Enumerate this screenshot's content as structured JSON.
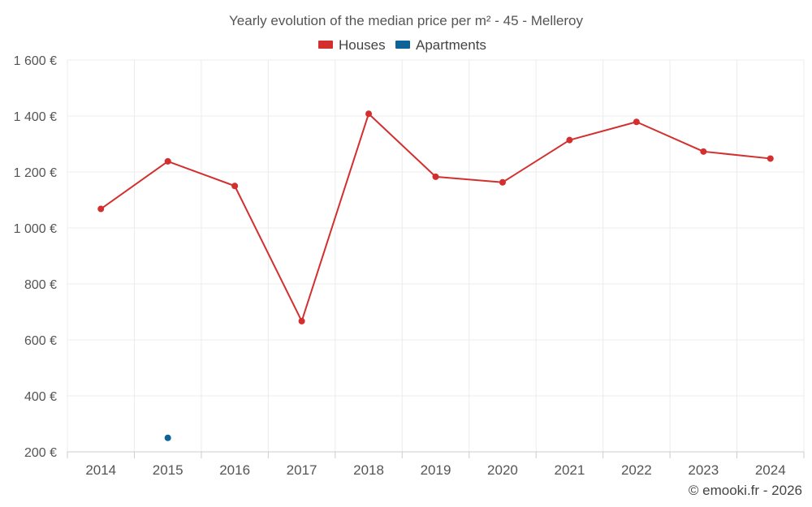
{
  "chart_data": {
    "type": "line",
    "title": "Yearly evolution of the median price per m² - 45 - Melleroy",
    "xlabel": "",
    "ylabel": "",
    "categories": [
      "2014",
      "2015",
      "2016",
      "2017",
      "2018",
      "2019",
      "2020",
      "2021",
      "2022",
      "2023",
      "2024"
    ],
    "ylim": [
      200,
      1600
    ],
    "yticks": [
      200,
      400,
      600,
      800,
      1000,
      1200,
      1400,
      1600
    ],
    "ytick_labels": [
      "200 €",
      "400 €",
      "600 €",
      "800 €",
      "1 000 €",
      "1 200 €",
      "1 400 €",
      "1 600 €"
    ],
    "grid": true,
    "legend_position": "top-center",
    "series": [
      {
        "name": "Houses",
        "color": "#d32f2f",
        "values": [
          1068,
          1238,
          1150,
          667,
          1408,
          1183,
          1163,
          1314,
          1379,
          1273,
          1248
        ]
      },
      {
        "name": "Apartments",
        "color": "#0d6297",
        "values": [
          null,
          250,
          null,
          null,
          null,
          null,
          null,
          null,
          null,
          null,
          null
        ]
      }
    ],
    "credit": "© emooki.fr - 2026"
  }
}
